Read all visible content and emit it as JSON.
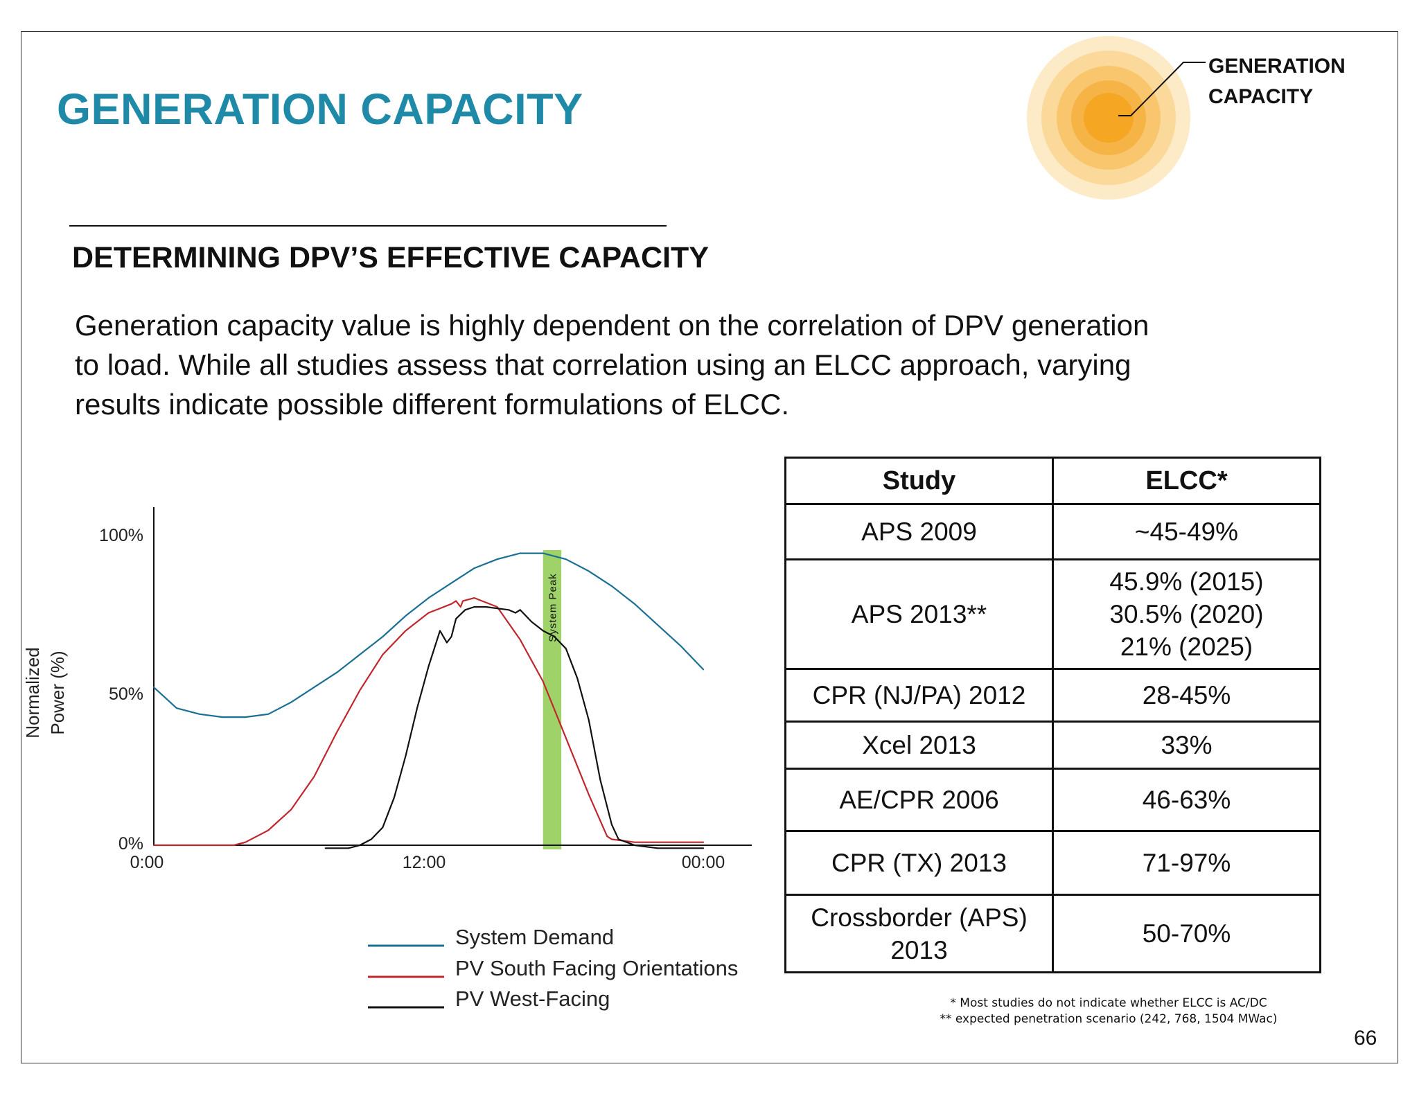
{
  "slide": {
    "title": "GENERATION CAPACITY",
    "badge_line1": "GENERATION",
    "badge_line2": "CAPACITY",
    "subtitle": "DETERMINING DPV’S EFFECTIVE CAPACITY",
    "body_lines": [
      "Generation capacity value is highly dependent on the correlation of DPV generation",
      "to load. While all studies assess that correlation using an ELCC approach, varying",
      "results indicate possible different formulations of ELCC."
    ],
    "page_number": "66"
  },
  "colors": {
    "title": "#1e8aa8",
    "system_demand": "#1a6f93",
    "pv_south": "#c0272d",
    "pv_west": "#111111",
    "system_peak_band": "#9fd36a",
    "sun_core": "#f5a623"
  },
  "chart_data": {
    "type": "line",
    "ylabel_line1": "Normalized",
    "ylabel_line2": "Power (%)",
    "y_ticks": [
      "100%",
      "50%",
      "0%"
    ],
    "x_ticks": [
      "0:00",
      "12:00",
      "00:00"
    ],
    "ylim": [
      0,
      100
    ],
    "annotation": "System Peak",
    "peak_band_hours": [
      17.0,
      17.8
    ],
    "legend_position": "bottom",
    "series": [
      {
        "name": "System Demand",
        "color": "#1a6f93",
        "points": [
          [
            0,
            53
          ],
          [
            1,
            46
          ],
          [
            2,
            44
          ],
          [
            3,
            43
          ],
          [
            4,
            43
          ],
          [
            5,
            44
          ],
          [
            6,
            48
          ],
          [
            7,
            53
          ],
          [
            8,
            58
          ],
          [
            9,
            64
          ],
          [
            10,
            70
          ],
          [
            11,
            77
          ],
          [
            12,
            83
          ],
          [
            13,
            88
          ],
          [
            14,
            93
          ],
          [
            15,
            96
          ],
          [
            16,
            98
          ],
          [
            17,
            98
          ],
          [
            18,
            96
          ],
          [
            19,
            92
          ],
          [
            20,
            87
          ],
          [
            21,
            81
          ],
          [
            22,
            74
          ],
          [
            23,
            67
          ],
          [
            24,
            59
          ]
        ]
      },
      {
        "name": "PV South Facing Orientations",
        "color": "#c0272d",
        "points": [
          [
            0,
            0
          ],
          [
            3.5,
            0
          ],
          [
            4,
            1
          ],
          [
            5,
            5
          ],
          [
            6,
            12
          ],
          [
            7,
            23
          ],
          [
            8,
            38
          ],
          [
            9,
            52
          ],
          [
            10,
            64
          ],
          [
            11,
            72
          ],
          [
            12,
            78
          ],
          [
            13,
            81
          ],
          [
            13.2,
            82
          ],
          [
            13.4,
            80
          ],
          [
            13.5,
            82
          ],
          [
            14,
            83
          ],
          [
            15,
            80
          ],
          [
            16,
            69
          ],
          [
            17,
            55
          ],
          [
            18,
            36
          ],
          [
            19,
            17
          ],
          [
            19.8,
            3
          ],
          [
            20,
            2
          ],
          [
            21,
            1
          ],
          [
            22,
            1
          ],
          [
            24,
            1
          ]
        ]
      },
      {
        "name": "PV West-Facing",
        "color": "#111111",
        "points": [
          [
            7.5,
            -1
          ],
          [
            8.5,
            -1
          ],
          [
            9,
            0
          ],
          [
            9.5,
            2
          ],
          [
            10,
            6
          ],
          [
            10.5,
            16
          ],
          [
            11,
            30
          ],
          [
            11.5,
            46
          ],
          [
            12,
            60
          ],
          [
            12.5,
            72
          ],
          [
            12.8,
            68
          ],
          [
            13,
            70
          ],
          [
            13.2,
            76
          ],
          [
            13.6,
            79
          ],
          [
            14,
            80
          ],
          [
            14.5,
            80
          ],
          [
            15.5,
            79
          ],
          [
            15.8,
            78
          ],
          [
            16,
            79
          ],
          [
            16.5,
            75
          ],
          [
            17,
            72
          ],
          [
            17.5,
            70
          ],
          [
            18,
            66
          ],
          [
            18.5,
            56
          ],
          [
            19,
            42
          ],
          [
            19.5,
            22
          ],
          [
            20,
            7
          ],
          [
            20.3,
            2
          ],
          [
            21,
            0
          ],
          [
            22,
            -1
          ],
          [
            24,
            -1
          ]
        ]
      }
    ]
  },
  "table": {
    "headers": [
      "Study",
      "ELCC*"
    ],
    "rows": [
      {
        "study": [
          "APS 2009"
        ],
        "elcc": [
          "~45-49%"
        ]
      },
      {
        "study": [
          "APS 2013**"
        ],
        "elcc": [
          "45.9% (2015)",
          "30.5% (2020)",
          "21% (2025)"
        ]
      },
      {
        "study": [
          "CPR (NJ/PA) 2012"
        ],
        "elcc": [
          "28-45%"
        ]
      },
      {
        "study": [
          "Xcel 2013"
        ],
        "elcc": [
          "33%"
        ]
      },
      {
        "study": [
          "AE/CPR 2006"
        ],
        "elcc": [
          "46-63%"
        ]
      },
      {
        "study": [
          "CPR (TX) 2013"
        ],
        "elcc": [
          "71-97%"
        ]
      },
      {
        "study": [
          "Crossborder (APS)",
          "2013"
        ],
        "elcc": [
          "50-70%"
        ]
      }
    ],
    "footnote_1": "* Most studies do not indicate whether ELCC is AC/DC",
    "footnote_2": "** expected penetration scenario (242, 768, 1504 MWac)"
  }
}
